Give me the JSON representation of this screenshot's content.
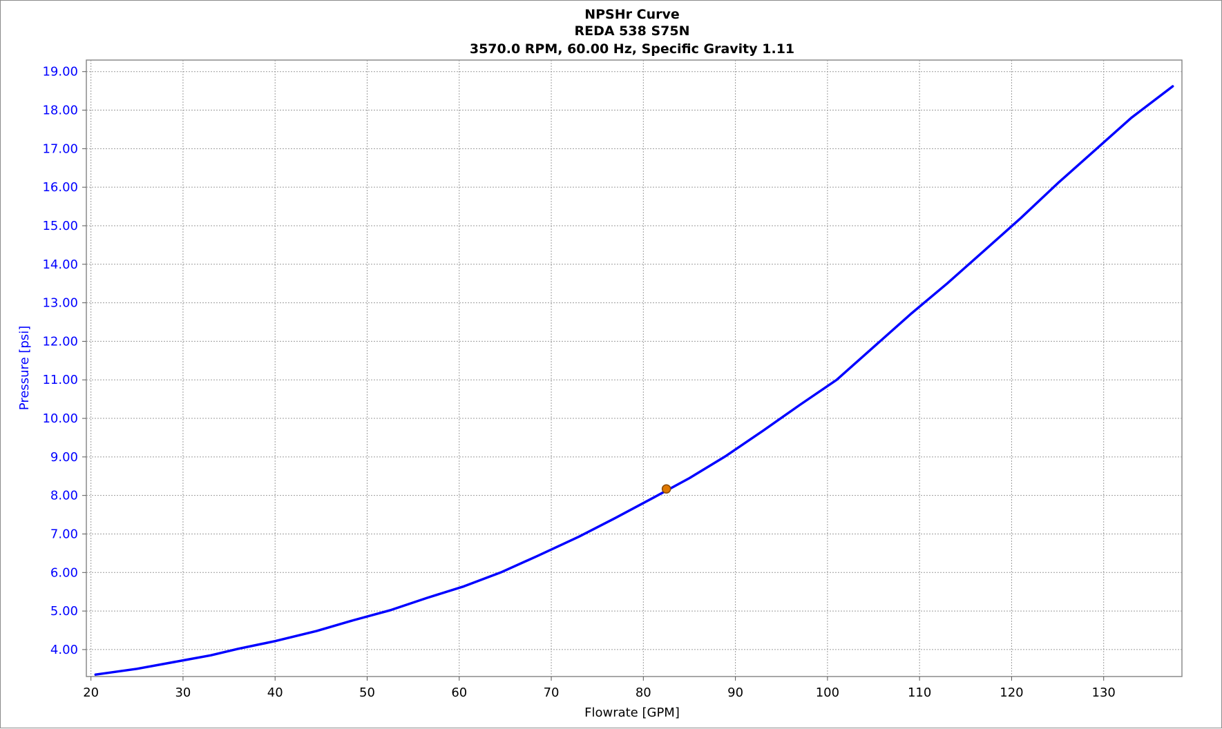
{
  "chart_data": {
    "type": "line",
    "title": "NPSHr Curve",
    "subtitle": [
      "REDA 538 S75N",
      "3570.0 RPM, 60.00 Hz, Specific Gravity 1.11"
    ],
    "xlabel": "Flowrate [GPM]",
    "ylabel": "Pressure [psi]",
    "xlim": [
      19.5,
      138.5
    ],
    "ylim": [
      3.3,
      19.3
    ],
    "x_ticks": [
      20,
      30,
      40,
      50,
      60,
      70,
      80,
      90,
      100,
      110,
      120,
      130
    ],
    "y_ticks": [
      4.0,
      5.0,
      6.0,
      7.0,
      8.0,
      9.0,
      10.0,
      11.0,
      12.0,
      13.0,
      14.0,
      15.0,
      16.0,
      17.0,
      18.0,
      19.0
    ],
    "y_tick_labels": [
      "4.00",
      "5.00",
      "6.00",
      "7.00",
      "8.00",
      "9.00",
      "10.00",
      "11.00",
      "12.00",
      "13.00",
      "14.00",
      "15.00",
      "16.00",
      "17.00",
      "18.00",
      "19.00"
    ],
    "grid": true,
    "series": [
      {
        "color": "#0000ff",
        "x": [
          20.5,
          25,
          30,
          33,
          36,
          40,
          44.5,
          48.5,
          52.5,
          56.5,
          60.5,
          64.5,
          68.5,
          73,
          77,
          81,
          85,
          89,
          93,
          97,
          101,
          105,
          109,
          113,
          117,
          121,
          125,
          129,
          133,
          137.5
        ],
        "y": [
          3.35,
          3.5,
          3.72,
          3.85,
          4.02,
          4.22,
          4.48,
          4.76,
          5.02,
          5.34,
          5.64,
          6.0,
          6.43,
          6.93,
          7.42,
          7.93,
          8.45,
          9.03,
          9.68,
          10.35,
          11.0,
          11.85,
          12.7,
          13.5,
          14.35,
          15.2,
          16.1,
          16.95,
          17.8,
          18.62
        ]
      }
    ],
    "marker": {
      "x": 82.5,
      "y": 8.17,
      "color": "#e07800"
    }
  }
}
